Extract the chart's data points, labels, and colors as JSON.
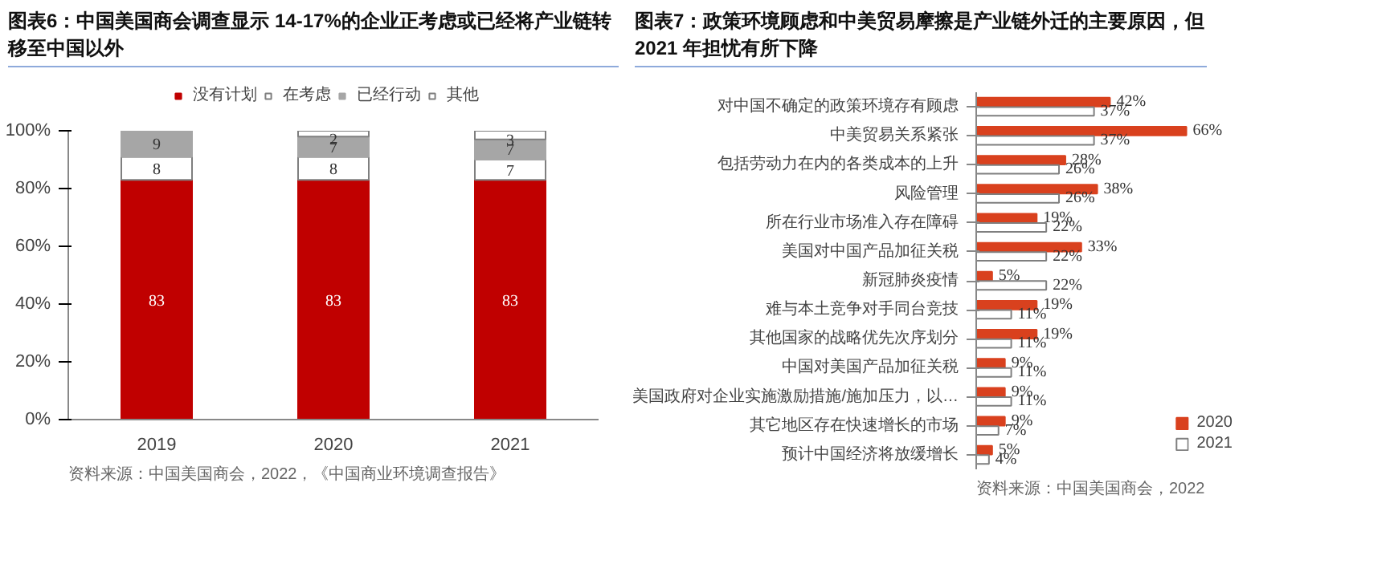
{
  "chart_data": [
    {
      "type": "bar",
      "title": "图表6：中国美国商会调查显示 14-17%的企业正考虑或已经将产业链转移至中国以外",
      "categories": [
        "2019",
        "2020",
        "2021"
      ],
      "stacked": true,
      "series": [
        {
          "name": "没有计划",
          "color": "#c00000",
          "values": [
            83,
            83,
            83
          ]
        },
        {
          "name": "在考虑",
          "color": "#ffffff",
          "values": [
            8,
            8,
            7
          ]
        },
        {
          "name": "已经行动",
          "color": "#a6a6a6",
          "values": [
            9,
            7,
            7
          ]
        },
        {
          "name": "其他",
          "color": "#ffffff",
          "values": [
            null,
            2,
            3
          ]
        }
      ],
      "ylim": [
        0,
        100
      ],
      "yticks": [
        {
          "value": 0,
          "label": "0%"
        },
        {
          "value": 20,
          "label": "20%"
        },
        {
          "value": 40,
          "label": "40%"
        },
        {
          "value": 60,
          "label": "60%"
        },
        {
          "value": 80,
          "label": "80%"
        },
        {
          "value": 100,
          "label": "100%"
        }
      ],
      "data_labels": true,
      "grid": false,
      "legend": "top",
      "annotations": [
        "资料来源：中国美国商会，2022，《中国商业环境调查报告》"
      ]
    },
    {
      "type": "bar",
      "orientation": "horizontal",
      "title": "图表7：政策环境顾虑和中美贸易摩擦是产业链外迁的主要原因，但2021 年担忧有所下降",
      "categories": [
        "对中国不确定的政策环境存有顾虑",
        "中美贸易关系紧张",
        "包括劳动力在内的各类成本的上升",
        "风险管理",
        "所在行业市场准入存在障碍",
        "美国对中国产品加征关税",
        "新冠肺炎疫情",
        "难与本土竞争对手同台竞技",
        "其他国家的战略优先次序划分",
        "中国对美国产品加征关税",
        "美国政府对企业实施激励措施/施加压力，以…",
        "其它地区存在快速增长的市场",
        "预计中国经济将放缓增长"
      ],
      "series": [
        {
          "name": "2020",
          "color": "#d9411e",
          "values": [
            42,
            66,
            28,
            38,
            19,
            33,
            5,
            19,
            19,
            9,
            9,
            9,
            5
          ],
          "value_labels": [
            "42%",
            "66%",
            "28%",
            "38%",
            "19%",
            "33%",
            "5%",
            "19%",
            "19%",
            "9%",
            "9%",
            "9%",
            "5%"
          ]
        },
        {
          "name": "2021",
          "color": "#ffffff",
          "values": [
            37,
            37,
            26,
            26,
            22,
            22,
            22,
            11,
            11,
            11,
            11,
            7,
            4
          ],
          "value_labels": [
            "37%",
            "37%",
            "26%",
            "26%",
            "22%",
            "22%",
            "22%",
            "11%",
            "11%",
            "11%",
            "11%",
            "7%",
            "4%"
          ]
        }
      ],
      "tick_labels": "y",
      "grid": false,
      "legend": "bottom right",
      "annotations": [
        "资料来源：中国美国商会，2022"
      ]
    }
  ]
}
